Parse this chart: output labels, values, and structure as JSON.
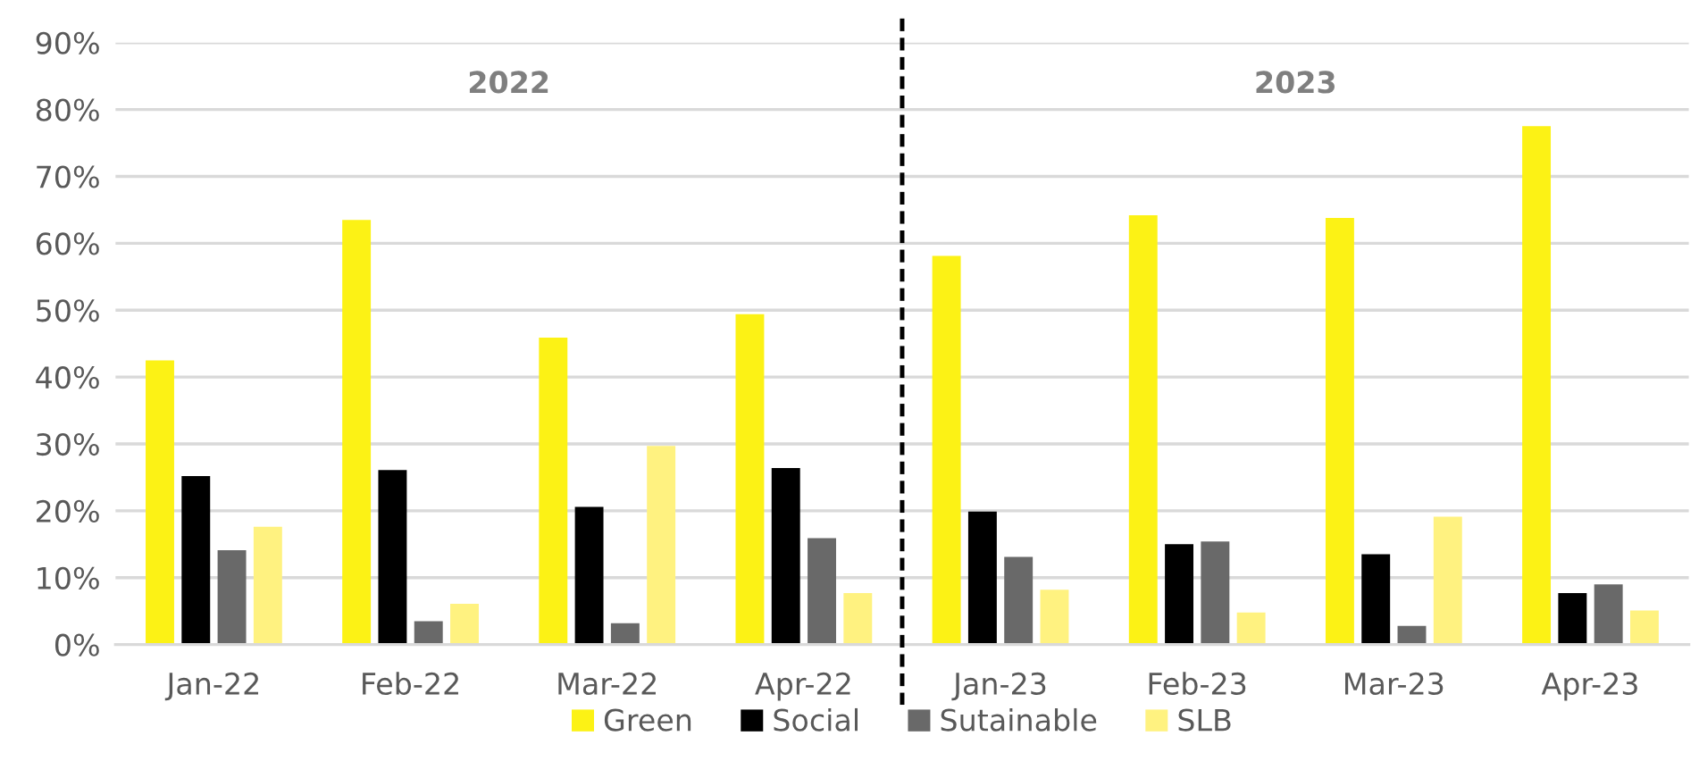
{
  "chart_data": {
    "type": "bar",
    "categories": [
      "Jan-22",
      "Feb-22",
      "Mar-22",
      "Apr-22",
      "Jan-23",
      "Feb-23",
      "Mar-23",
      "Apr-23"
    ],
    "series": [
      {
        "name": "Green",
        "color": "#fcf215",
        "values": [
          42.5,
          63.5,
          45.9,
          49.4,
          58.1,
          64.2,
          63.8,
          77.5
        ]
      },
      {
        "name": "Social",
        "color": "#000000",
        "values": [
          25.2,
          26.1,
          20.6,
          26.4,
          19.9,
          15.0,
          13.5,
          7.7
        ]
      },
      {
        "name": "Sutainable",
        "color": "#696969",
        "values": [
          14.1,
          3.5,
          3.2,
          15.9,
          13.1,
          15.4,
          2.8,
          9.0
        ]
      },
      {
        "name": "SLB",
        "color": "#fff280",
        "values": [
          17.6,
          6.1,
          29.7,
          7.7,
          8.2,
          4.8,
          19.1,
          5.1
        ]
      }
    ],
    "ylim": [
      0,
      90
    ],
    "yticks": [
      {
        "value": 0,
        "label": "0%"
      },
      {
        "value": 10,
        "label": "10%"
      },
      {
        "value": 20,
        "label": "20%"
      },
      {
        "value": 30,
        "label": "30%"
      },
      {
        "value": 40,
        "label": "40%"
      },
      {
        "value": 50,
        "label": "50%"
      },
      {
        "value": 60,
        "label": "60%"
      },
      {
        "value": 70,
        "label": "70%"
      },
      {
        "value": 80,
        "label": "80%"
      },
      {
        "value": 90,
        "label": "90%"
      }
    ],
    "annotations": [
      "2022",
      "2023"
    ],
    "grid": "y",
    "legend": "bottom"
  }
}
